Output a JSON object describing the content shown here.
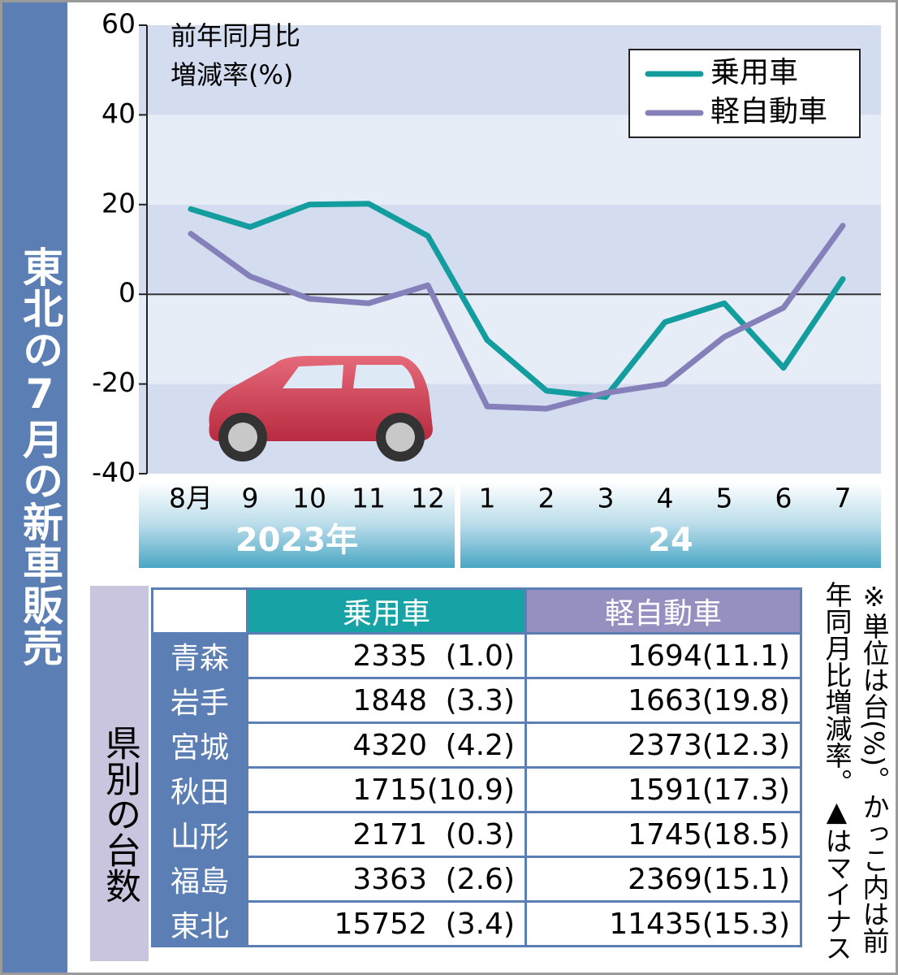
{
  "chart_data": {
    "type": "line",
    "title": "東北の7月の新車販売",
    "y_label": [
      "前年同月比",
      "増減率(%)"
    ],
    "categories": [
      "8月",
      "9",
      "10",
      "11",
      "12",
      "1",
      "2",
      "3",
      "4",
      "5",
      "6",
      "7"
    ],
    "year_groups": [
      {
        "label": "2023年",
        "span": [
          0,
          4
        ]
      },
      {
        "label": "24",
        "span": [
          5,
          11
        ]
      }
    ],
    "series": [
      {
        "name": "乗用車",
        "color": "#139d9f",
        "values": [
          19,
          15,
          20,
          20.2,
          13,
          -10.2,
          -21.5,
          -22.9,
          -6.2,
          -2,
          -16.4,
          3.4
        ]
      },
      {
        "name": "軽自動車",
        "color": "#857fba",
        "values": [
          13.5,
          4,
          -1,
          -2,
          2,
          -25,
          -25.5,
          -22,
          -20,
          -9.5,
          -3,
          15.3
        ]
      }
    ],
    "ylim": [
      -40,
      60
    ],
    "yticks": [
      60,
      40,
      20,
      0,
      -20,
      -40
    ],
    "grid": true,
    "legend": "top-right"
  },
  "table": {
    "title": "県別の台数",
    "header": [
      "乗用車",
      "軽自動車"
    ],
    "rows": [
      [
        "青森",
        "2335",
        "(1.0)",
        "1694",
        "(11.1)"
      ],
      [
        "岩手",
        "1848",
        "(3.3)",
        "1663",
        "(19.8)"
      ],
      [
        "宮城",
        "4320",
        "(4.2)",
        "2373",
        "(12.3)"
      ],
      [
        "秋田",
        "1715",
        "(10.9)",
        "1591",
        "(17.3)"
      ],
      [
        "山形",
        "2171",
        "(0.3)",
        "1745",
        "(18.5)"
      ],
      [
        "福島",
        "3363",
        "(2.6)",
        "2369",
        "(15.1)"
      ],
      [
        "東北",
        "15752",
        "(3.4)",
        "11435",
        "(15.3)"
      ]
    ]
  },
  "note": "※単位は台(%)。かっこ内は前年同月比増減率。▲はマイナス"
}
